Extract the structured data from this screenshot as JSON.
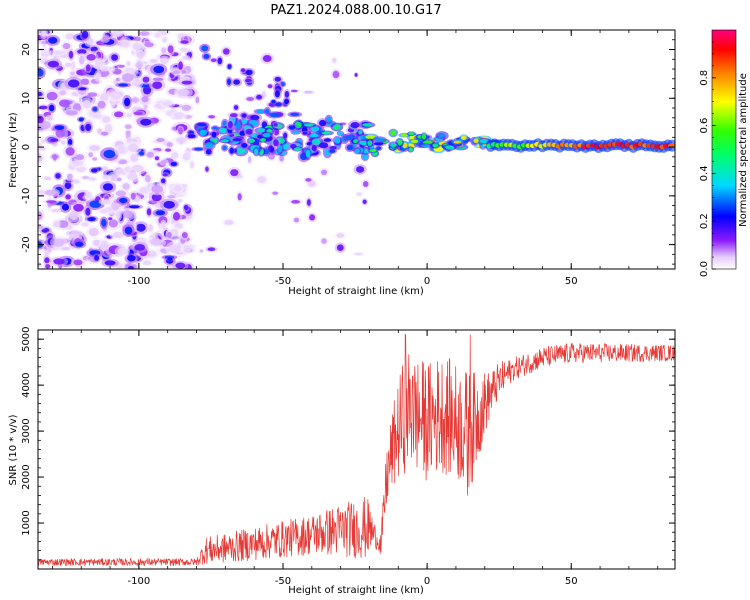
{
  "figure_title": "PAZ1.2024.088.00.10.G17",
  "colors": {
    "snr_line": "#e53935",
    "background": "#ffffff"
  },
  "colormap": "rainbow (white-violet-blue-cyan-green-yellow-red-magenta)",
  "chart_data": [
    {
      "type": "heatmap",
      "title": "",
      "xlabel": "Height of straight line (km)",
      "ylabel": "Frequency (Hz)",
      "xlim": [
        -135,
        86
      ],
      "ylim": [
        -25,
        24
      ],
      "xticks": [
        -100,
        -50,
        0,
        50
      ],
      "yticks": [
        -20,
        -10,
        0,
        10,
        20
      ],
      "colorbar": {
        "label": "Normalized spectral amplitude",
        "range": [
          0,
          1
        ],
        "ticks": [
          "0.0",
          "0.2",
          "0.4",
          "0.6",
          "0.8"
        ]
      },
      "regions": [
        {
          "x_range": [
            -135,
            -82
          ],
          "freq_range": [
            -25,
            24
          ],
          "amplitude": "low, scattered noise 0.05-0.3"
        },
        {
          "x_range": [
            -82,
            -20
          ],
          "freq_range": [
            -22,
            22
          ],
          "amplitude": "scattered blobs, ridge near 0-5 Hz up to 0.5"
        },
        {
          "x_range": [
            -20,
            25
          ],
          "freq_range": [
            -3,
            4
          ],
          "amplitude": "narrowing band 0.3-0.8"
        },
        {
          "x_range": [
            25,
            86
          ],
          "freq_range": [
            -1,
            1
          ],
          "amplitude": "concentrated line near 0.5-1 Hz, 0.5-1.0"
        }
      ]
    },
    {
      "type": "line",
      "title": "",
      "xlabel": "Height of straight line (km)",
      "ylabel": "SNR (10 * v/v)",
      "xlim": [
        -135,
        86
      ],
      "ylim": [
        0,
        5200
      ],
      "xticks": [
        -100,
        -50,
        0,
        50
      ],
      "yticks": [
        1000,
        2000,
        3000,
        4000,
        5000
      ],
      "series": [
        {
          "profile": [
            [
              -135,
              150
            ],
            [
              -80,
              150
            ],
            [
              -77,
              400
            ],
            [
              -70,
              450
            ],
            [
              -60,
              550
            ],
            [
              -50,
              650
            ],
            [
              -40,
              750
            ],
            [
              -30,
              850
            ],
            [
              -20,
              900
            ],
            [
              -16,
              500
            ],
            [
              -14,
              2000
            ],
            [
              -12,
              2600
            ],
            [
              -10,
              3000
            ],
            [
              -7,
              3500
            ],
            [
              -5,
              3400
            ],
            [
              0,
              3200
            ],
            [
              5,
              3400
            ],
            [
              10,
              3200
            ],
            [
              15,
              3000
            ],
            [
              20,
              3600
            ],
            [
              25,
              4100
            ],
            [
              30,
              4350
            ],
            [
              40,
              4600
            ],
            [
              50,
              4700
            ],
            [
              60,
              4700
            ],
            [
              70,
              4700
            ],
            [
              86,
              4700
            ]
          ],
          "noise_amplitude": [
            [
              -135,
              80
            ],
            [
              -80,
              80
            ],
            [
              -77,
              300
            ],
            [
              -40,
              450
            ],
            [
              -21,
              700
            ],
            [
              -17,
              150
            ],
            [
              -14,
              700
            ],
            [
              -8,
              1300
            ],
            [
              15,
              1300
            ],
            [
              22,
              500
            ],
            [
              30,
              250
            ],
            [
              86,
              180
            ]
          ],
          "spikes": [
            [
              -7.5,
              5100
            ],
            [
              15,
              5100
            ],
            [
              -5,
              4200
            ],
            [
              14,
              1600
            ]
          ]
        }
      ]
    }
  ]
}
